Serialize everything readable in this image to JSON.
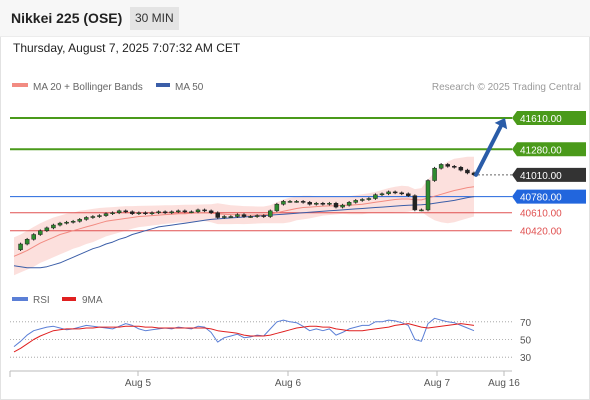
{
  "header": {
    "title": "Nikkei 225 (OSE)",
    "timeframe": "30 MIN",
    "timestamp": "Thursday, August 7, 2025 7:07:32 AM CET"
  },
  "legend": {
    "ma20": "MA 20 + Bollinger Bands",
    "ma50": "MA 50",
    "credit": "Research © 2025 Trading Central",
    "colors": {
      "ma20": "#f28b82",
      "ma50": "#3b5ea8",
      "bands": "#fbd5d2"
    }
  },
  "rsi_legend": {
    "rsi": "RSI",
    "ma9": "9MA",
    "colors": {
      "rsi": "#5b7fd6",
      "ma9": "#e02020"
    }
  },
  "chart_data": [
    {
      "type": "candlestick",
      "title": "",
      "x_tick_labels": [
        "Aug 5",
        "Aug 6",
        "Aug 7",
        "Aug 16"
      ],
      "ylim": [
        39900,
        41800
      ],
      "levels": [
        {
          "name": "resistance-2",
          "value": 41610,
          "label": "41610.00",
          "color": "#4a9a1a",
          "style": "solid"
        },
        {
          "name": "resistance-1",
          "value": 41280,
          "label": "41280.00",
          "color": "#4a9a1a",
          "style": "solid"
        },
        {
          "name": "current-price",
          "value": 41010,
          "label": "41010.00",
          "color": "#333333",
          "style": "dotted"
        },
        {
          "name": "pivot",
          "value": 40780,
          "label": "40780.00",
          "color": "#2266dd",
          "style": "solid"
        },
        {
          "name": "support-1",
          "value": 40610,
          "label": "40610.00",
          "color": "#e05050",
          "style": "solid"
        },
        {
          "name": "support-2",
          "value": 40420,
          "label": "40420.00",
          "color": "#e05050",
          "style": "solid"
        }
      ],
      "close_series": [
        40220,
        40280,
        40330,
        40380,
        40420,
        40450,
        40480,
        40500,
        40510,
        40520,
        40540,
        40560,
        40570,
        40580,
        40600,
        40610,
        40630,
        40620,
        40600,
        40610,
        40600,
        40610,
        40620,
        40610,
        40620,
        40630,
        40620,
        40620,
        40640,
        40630,
        40610,
        40560,
        40570,
        40570,
        40590,
        40570,
        40570,
        40580,
        40570,
        40630,
        40700,
        40730,
        40730,
        40730,
        40720,
        40700,
        40710,
        40700,
        40710,
        40670,
        40690,
        40720,
        40740,
        40750,
        40760,
        40800,
        40810,
        40830,
        40820,
        40810,
        40790,
        40640,
        40640,
        40950,
        41080,
        41120,
        41100,
        41090,
        41060,
        41030,
        41010
      ],
      "ma20": [
        40150,
        40180,
        40210,
        40250,
        40290,
        40320,
        40350,
        40380,
        40400,
        40420,
        40440,
        40460,
        40480,
        40500,
        40520,
        40530,
        40540,
        40550,
        40560,
        40570,
        40575,
        40580,
        40585,
        40590,
        40595,
        40600,
        40600,
        40605,
        40608,
        40610,
        40605,
        40600,
        40595,
        40590,
        40588,
        40585,
        40585,
        40586,
        40588,
        40595,
        40610,
        40625,
        40640,
        40655,
        40665,
        40670,
        40675,
        40680,
        40682,
        40684,
        40688,
        40690,
        40695,
        40700,
        40710,
        40720,
        40730,
        40740,
        40750,
        40755,
        40755,
        40748,
        40745,
        40765,
        40785,
        40805,
        40825,
        40845,
        40860,
        40875,
        40885
      ],
      "bb_upper": [
        40350,
        40380,
        40420,
        40460,
        40500,
        40530,
        40560,
        40580,
        40600,
        40610,
        40630,
        40640,
        40650,
        40660,
        40665,
        40670,
        40675,
        40680,
        40680,
        40682,
        40684,
        40685,
        40686,
        40688,
        40690,
        40692,
        40694,
        40695,
        40696,
        40698,
        40700,
        40710,
        40700,
        40690,
        40685,
        40680,
        40678,
        40676,
        40676,
        40690,
        40720,
        40750,
        40770,
        40780,
        40790,
        40790,
        40785,
        40780,
        40778,
        40776,
        40778,
        40785,
        40795,
        40805,
        40815,
        40830,
        40850,
        40870,
        40885,
        40895,
        40890,
        40860,
        40870,
        40960,
        41040,
        41100,
        41150,
        41180,
        41190,
        41200,
        41200
      ],
      "bb_lower": [
        39950,
        39980,
        40010,
        40040,
        40080,
        40110,
        40140,
        40170,
        40200,
        40230,
        40250,
        40280,
        40300,
        40330,
        40360,
        40380,
        40400,
        40420,
        40440,
        40458,
        40466,
        40475,
        40484,
        40492,
        40500,
        40508,
        40506,
        40515,
        40520,
        40522,
        40510,
        40490,
        40490,
        40490,
        40491,
        40490,
        40492,
        40496,
        40500,
        40500,
        40500,
        40500,
        40510,
        40530,
        40540,
        40550,
        40565,
        40580,
        40586,
        40592,
        40598,
        40595,
        40595,
        40595,
        40605,
        40610,
        40610,
        40610,
        40615,
        40615,
        40620,
        40636,
        40620,
        40570,
        40530,
        40510,
        40500,
        40510,
        40530,
        40550,
        40570
      ],
      "ma50": [
        40050,
        40040,
        40030,
        40030,
        40030,
        40040,
        40060,
        40080,
        40110,
        40140,
        40170,
        40200,
        40230,
        40250,
        40280,
        40300,
        40330,
        40350,
        40380,
        40400,
        40420,
        40440,
        40460,
        40470,
        40480,
        40490,
        40500,
        40510,
        40520,
        40530,
        40540,
        40545,
        40550,
        40555,
        40560,
        40565,
        40570,
        40575,
        40580,
        40585,
        40590,
        40595,
        40600,
        40605,
        40610,
        40615,
        40620,
        40625,
        40630,
        40635,
        40640,
        40645,
        40650,
        40655,
        40660,
        40665,
        40670,
        40675,
        40680,
        40685,
        40690,
        40692,
        40694,
        40700,
        40710,
        40720,
        40730,
        40740,
        40755,
        40770,
        40780
      ],
      "projection": {
        "from": 41010,
        "to": 41610
      }
    },
    {
      "type": "line",
      "title": "",
      "ylim": [
        20,
        80
      ],
      "y_ticks": [
        30,
        50,
        70
      ],
      "series": [
        {
          "name": "RSI",
          "values": [
            42,
            48,
            55,
            60,
            62,
            64,
            65,
            63,
            61,
            62,
            64,
            66,
            65,
            64,
            63,
            62,
            65,
            68,
            66,
            62,
            60,
            61,
            62,
            63,
            62,
            64,
            63,
            62,
            65,
            64,
            58,
            47,
            52,
            54,
            56,
            52,
            53,
            55,
            54,
            62,
            70,
            72,
            70,
            69,
            65,
            60,
            62,
            60,
            62,
            55,
            58,
            62,
            64,
            66,
            66,
            70,
            70,
            72,
            71,
            69,
            66,
            50,
            48,
            68,
            74,
            72,
            70,
            69,
            66,
            63,
            60
          ]
        },
        {
          "name": "9MA",
          "values": [
            36,
            40,
            45,
            50,
            54,
            57,
            60,
            61,
            62,
            62,
            62,
            63,
            63,
            64,
            64,
            64,
            64,
            65,
            65,
            65,
            64,
            64,
            63,
            63,
            63,
            63,
            63,
            63,
            63,
            63,
            62,
            60,
            59,
            58,
            57,
            55,
            54,
            54,
            54,
            55,
            57,
            59,
            61,
            63,
            64,
            65,
            65,
            64,
            64,
            62,
            61,
            60,
            60,
            60,
            61,
            62,
            63,
            64,
            66,
            67,
            68,
            66,
            64,
            63,
            64,
            65,
            66,
            67,
            68,
            67,
            66
          ]
        }
      ]
    }
  ]
}
